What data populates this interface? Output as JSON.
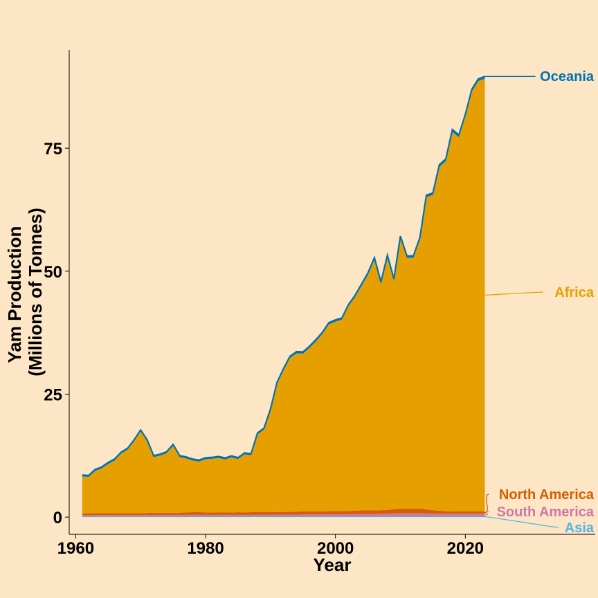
{
  "chart_data": {
    "type": "area",
    "stacked": true,
    "title": "",
    "xlabel": "Year",
    "ylabel": [
      "Yam Production",
      "(Millions of Tonnes)"
    ],
    "xlim": [
      1959,
      2040
    ],
    "ylim": [
      -3.5,
      95
    ],
    "x_ticks": [
      1960,
      1980,
      2000,
      2020
    ],
    "y_ticks": [
      0,
      25,
      50,
      75
    ],
    "legend": "direct labels at right",
    "grid": false,
    "years": [
      1961,
      1962,
      1963,
      1964,
      1965,
      1966,
      1967,
      1968,
      1969,
      1970,
      1971,
      1972,
      1973,
      1974,
      1975,
      1976,
      1977,
      1978,
      1979,
      1980,
      1981,
      1982,
      1983,
      1984,
      1985,
      1986,
      1987,
      1988,
      1989,
      1990,
      1991,
      1992,
      1993,
      1994,
      1995,
      1996,
      1997,
      1998,
      1999,
      2000,
      2001,
      2002,
      2003,
      2004,
      2005,
      2006,
      2007,
      2008,
      2009,
      2010,
      2011,
      2012,
      2013,
      2014,
      2015,
      2016,
      2017,
      2018,
      2019,
      2020,
      2021,
      2022,
      2023
    ],
    "series": [
      {
        "name": "Asia",
        "color": "#56b4e9",
        "values": [
          0.15,
          0.15,
          0.15,
          0.15,
          0.15,
          0.15,
          0.15,
          0.15,
          0.15,
          0.15,
          0.15,
          0.15,
          0.15,
          0.15,
          0.15,
          0.15,
          0.15,
          0.15,
          0.15,
          0.15,
          0.15,
          0.15,
          0.15,
          0.15,
          0.15,
          0.15,
          0.15,
          0.15,
          0.15,
          0.15,
          0.15,
          0.15,
          0.15,
          0.15,
          0.15,
          0.15,
          0.15,
          0.15,
          0.15,
          0.15,
          0.15,
          0.15,
          0.15,
          0.15,
          0.15,
          0.15,
          0.15,
          0.15,
          0.15,
          0.15,
          0.15,
          0.15,
          0.15,
          0.15,
          0.15,
          0.15,
          0.15,
          0.15,
          0.15,
          0.15,
          0.15,
          0.15,
          0.15
        ]
      },
      {
        "name": "South America",
        "color": "#cc79a7",
        "values": [
          0.25,
          0.25,
          0.25,
          0.25,
          0.25,
          0.25,
          0.25,
          0.25,
          0.25,
          0.25,
          0.25,
          0.3,
          0.3,
          0.3,
          0.3,
          0.3,
          0.3,
          0.3,
          0.3,
          0.3,
          0.3,
          0.3,
          0.3,
          0.3,
          0.3,
          0.3,
          0.3,
          0.3,
          0.3,
          0.35,
          0.35,
          0.35,
          0.35,
          0.35,
          0.4,
          0.4,
          0.4,
          0.4,
          0.45,
          0.45,
          0.45,
          0.45,
          0.5,
          0.5,
          0.5,
          0.5,
          0.5,
          0.55,
          0.6,
          0.6,
          0.6,
          0.6,
          0.6,
          0.6,
          0.55,
          0.55,
          0.55,
          0.55,
          0.55,
          0.55,
          0.55,
          0.55,
          0.55
        ]
      },
      {
        "name": "North America",
        "color": "#d55e00",
        "values": [
          0.35,
          0.38,
          0.4,
          0.4,
          0.4,
          0.42,
          0.42,
          0.42,
          0.42,
          0.42,
          0.42,
          0.45,
          0.45,
          0.45,
          0.45,
          0.45,
          0.5,
          0.55,
          0.55,
          0.52,
          0.5,
          0.48,
          0.48,
          0.5,
          0.55,
          0.5,
          0.55,
          0.55,
          0.55,
          0.5,
          0.5,
          0.55,
          0.55,
          0.6,
          0.6,
          0.65,
          0.6,
          0.6,
          0.6,
          0.65,
          0.65,
          0.65,
          0.65,
          0.7,
          0.7,
          0.7,
          0.75,
          0.75,
          0.9,
          1.0,
          0.95,
          0.95,
          1.0,
          0.8,
          0.7,
          0.6,
          0.5,
          0.45,
          0.45,
          0.45,
          0.45,
          0.45,
          0.45
        ]
      },
      {
        "name": "Africa",
        "color": "#e69f00",
        "values": [
          7.5,
          7.4,
          8.6,
          9.1,
          10.0,
          10.7,
          12.1,
          12.9,
          14.6,
          16.6,
          14.6,
          11.3,
          11.6,
          12.1,
          13.6,
          11.3,
          11.0,
          10.5,
          10.3,
          10.8,
          10.9,
          11.1,
          10.8,
          11.2,
          10.8,
          11.8,
          11.6,
          15.8,
          16.8,
          20.7,
          26.1,
          28.8,
          31.3,
          32.2,
          32.1,
          33.2,
          34.6,
          36.1,
          38.0,
          38.5,
          38.9,
          41.6,
          43.4,
          45.6,
          47.9,
          51.0,
          46.0,
          51.4,
          46.4,
          55.0,
          51.0,
          51.0,
          54.7,
          63.5,
          64.1,
          69.9,
          71.2,
          77.2,
          76.1,
          80.3,
          85.4,
          87.5,
          88.0
        ]
      },
      {
        "name": "Oceania",
        "color": "#0072b2",
        "values": [
          0.3,
          0.3,
          0.3,
          0.3,
          0.3,
          0.3,
          0.3,
          0.3,
          0.3,
          0.3,
          0.3,
          0.3,
          0.3,
          0.3,
          0.3,
          0.3,
          0.3,
          0.3,
          0.3,
          0.3,
          0.3,
          0.3,
          0.3,
          0.3,
          0.3,
          0.3,
          0.3,
          0.3,
          0.3,
          0.3,
          0.3,
          0.35,
          0.35,
          0.35,
          0.35,
          0.35,
          0.35,
          0.35,
          0.35,
          0.35,
          0.35,
          0.35,
          0.35,
          0.4,
          0.4,
          0.4,
          0.4,
          0.4,
          0.4,
          0.4,
          0.4,
          0.4,
          0.4,
          0.4,
          0.4,
          0.45,
          0.45,
          0.45,
          0.45,
          0.45,
          0.45,
          0.45,
          0.45
        ]
      }
    ]
  }
}
